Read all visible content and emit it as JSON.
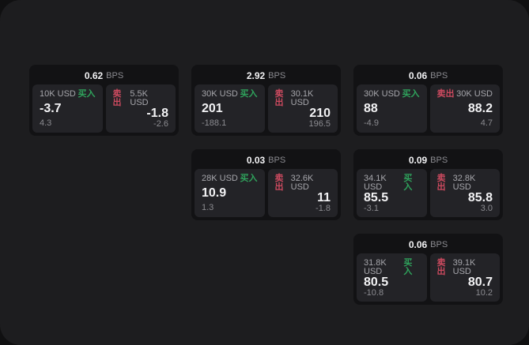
{
  "labels": {
    "bps_unit": "BPS",
    "buy": "买入",
    "sell": "卖出"
  },
  "colors": {
    "buy_green": "#2fa35c",
    "sell_red": "#cc4a5f",
    "page_background": "#1d1d1f",
    "card_background": "#121214",
    "panel_background": "#232327"
  },
  "cards": [
    {
      "bps": "0.62",
      "buy": {
        "amount": "10K USD",
        "price": "-3.7",
        "change": "4.3"
      },
      "sell": {
        "amount": "5.5K USD",
        "price": "-1.8",
        "change": "-2.6"
      }
    },
    {
      "bps": "2.92",
      "buy": {
        "amount": "30K USD",
        "price": "201",
        "change": "-188.1"
      },
      "sell": {
        "amount": "30.1K USD",
        "price": "210",
        "change": "196.5"
      }
    },
    {
      "bps": "0.06",
      "buy": {
        "amount": "30K USD",
        "price": "88",
        "change": "-4.9"
      },
      "sell": {
        "amount": "30K USD",
        "price": "88.2",
        "change": "4.7"
      }
    },
    {
      "bps": "0.03",
      "buy": {
        "amount": "28K USD",
        "price": "10.9",
        "change": "1.3"
      },
      "sell": {
        "amount": "32.6K USD",
        "price": "11",
        "change": "-1.8"
      }
    },
    {
      "bps": "0.09",
      "buy": {
        "amount": "34.1K USD",
        "price": "85.5",
        "change": "-3.1"
      },
      "sell": {
        "amount": "32.8K USD",
        "price": "85.8",
        "change": "3.0"
      }
    },
    {
      "bps": "0.06",
      "buy": {
        "amount": "31.8K USD",
        "price": "80.5",
        "change": "-10.8"
      },
      "sell": {
        "amount": "39.1K USD",
        "price": "80.7",
        "change": "10.2"
      }
    }
  ]
}
